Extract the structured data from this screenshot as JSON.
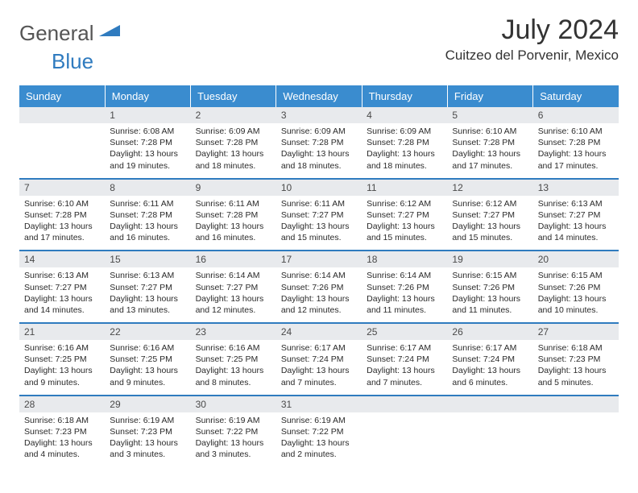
{
  "brand": {
    "part1": "General",
    "part2": "Blue"
  },
  "title": "July 2024",
  "location": "Cuitzeo del Porvenir, Mexico",
  "colors": {
    "header_bg": "#3a8ccf",
    "header_text": "#ffffff",
    "row_border": "#2f7bbf",
    "daynum_bg": "#e8eaed",
    "body_text": "#2a2a2a"
  },
  "typography": {
    "body_fontsize": 10.5,
    "title_fontsize": 34,
    "location_fontsize": 17,
    "header_fontsize": 13
  },
  "daynames": [
    "Sunday",
    "Monday",
    "Tuesday",
    "Wednesday",
    "Thursday",
    "Friday",
    "Saturday"
  ],
  "weeks": [
    [
      {
        "empty": true
      },
      {
        "num": "1",
        "sunrise": "Sunrise: 6:08 AM",
        "sunset": "Sunset: 7:28 PM",
        "day1": "Daylight: 13 hours",
        "day2": "and 19 minutes."
      },
      {
        "num": "2",
        "sunrise": "Sunrise: 6:09 AM",
        "sunset": "Sunset: 7:28 PM",
        "day1": "Daylight: 13 hours",
        "day2": "and 18 minutes."
      },
      {
        "num": "3",
        "sunrise": "Sunrise: 6:09 AM",
        "sunset": "Sunset: 7:28 PM",
        "day1": "Daylight: 13 hours",
        "day2": "and 18 minutes."
      },
      {
        "num": "4",
        "sunrise": "Sunrise: 6:09 AM",
        "sunset": "Sunset: 7:28 PM",
        "day1": "Daylight: 13 hours",
        "day2": "and 18 minutes."
      },
      {
        "num": "5",
        "sunrise": "Sunrise: 6:10 AM",
        "sunset": "Sunset: 7:28 PM",
        "day1": "Daylight: 13 hours",
        "day2": "and 17 minutes."
      },
      {
        "num": "6",
        "sunrise": "Sunrise: 6:10 AM",
        "sunset": "Sunset: 7:28 PM",
        "day1": "Daylight: 13 hours",
        "day2": "and 17 minutes."
      }
    ],
    [
      {
        "num": "7",
        "sunrise": "Sunrise: 6:10 AM",
        "sunset": "Sunset: 7:28 PM",
        "day1": "Daylight: 13 hours",
        "day2": "and 17 minutes."
      },
      {
        "num": "8",
        "sunrise": "Sunrise: 6:11 AM",
        "sunset": "Sunset: 7:28 PM",
        "day1": "Daylight: 13 hours",
        "day2": "and 16 minutes."
      },
      {
        "num": "9",
        "sunrise": "Sunrise: 6:11 AM",
        "sunset": "Sunset: 7:28 PM",
        "day1": "Daylight: 13 hours",
        "day2": "and 16 minutes."
      },
      {
        "num": "10",
        "sunrise": "Sunrise: 6:11 AM",
        "sunset": "Sunset: 7:27 PM",
        "day1": "Daylight: 13 hours",
        "day2": "and 15 minutes."
      },
      {
        "num": "11",
        "sunrise": "Sunrise: 6:12 AM",
        "sunset": "Sunset: 7:27 PM",
        "day1": "Daylight: 13 hours",
        "day2": "and 15 minutes."
      },
      {
        "num": "12",
        "sunrise": "Sunrise: 6:12 AM",
        "sunset": "Sunset: 7:27 PM",
        "day1": "Daylight: 13 hours",
        "day2": "and 15 minutes."
      },
      {
        "num": "13",
        "sunrise": "Sunrise: 6:13 AM",
        "sunset": "Sunset: 7:27 PM",
        "day1": "Daylight: 13 hours",
        "day2": "and 14 minutes."
      }
    ],
    [
      {
        "num": "14",
        "sunrise": "Sunrise: 6:13 AM",
        "sunset": "Sunset: 7:27 PM",
        "day1": "Daylight: 13 hours",
        "day2": "and 14 minutes."
      },
      {
        "num": "15",
        "sunrise": "Sunrise: 6:13 AM",
        "sunset": "Sunset: 7:27 PM",
        "day1": "Daylight: 13 hours",
        "day2": "and 13 minutes."
      },
      {
        "num": "16",
        "sunrise": "Sunrise: 6:14 AM",
        "sunset": "Sunset: 7:27 PM",
        "day1": "Daylight: 13 hours",
        "day2": "and 12 minutes."
      },
      {
        "num": "17",
        "sunrise": "Sunrise: 6:14 AM",
        "sunset": "Sunset: 7:26 PM",
        "day1": "Daylight: 13 hours",
        "day2": "and 12 minutes."
      },
      {
        "num": "18",
        "sunrise": "Sunrise: 6:14 AM",
        "sunset": "Sunset: 7:26 PM",
        "day1": "Daylight: 13 hours",
        "day2": "and 11 minutes."
      },
      {
        "num": "19",
        "sunrise": "Sunrise: 6:15 AM",
        "sunset": "Sunset: 7:26 PM",
        "day1": "Daylight: 13 hours",
        "day2": "and 11 minutes."
      },
      {
        "num": "20",
        "sunrise": "Sunrise: 6:15 AM",
        "sunset": "Sunset: 7:26 PM",
        "day1": "Daylight: 13 hours",
        "day2": "and 10 minutes."
      }
    ],
    [
      {
        "num": "21",
        "sunrise": "Sunrise: 6:16 AM",
        "sunset": "Sunset: 7:25 PM",
        "day1": "Daylight: 13 hours",
        "day2": "and 9 minutes."
      },
      {
        "num": "22",
        "sunrise": "Sunrise: 6:16 AM",
        "sunset": "Sunset: 7:25 PM",
        "day1": "Daylight: 13 hours",
        "day2": "and 9 minutes."
      },
      {
        "num": "23",
        "sunrise": "Sunrise: 6:16 AM",
        "sunset": "Sunset: 7:25 PM",
        "day1": "Daylight: 13 hours",
        "day2": "and 8 minutes."
      },
      {
        "num": "24",
        "sunrise": "Sunrise: 6:17 AM",
        "sunset": "Sunset: 7:24 PM",
        "day1": "Daylight: 13 hours",
        "day2": "and 7 minutes."
      },
      {
        "num": "25",
        "sunrise": "Sunrise: 6:17 AM",
        "sunset": "Sunset: 7:24 PM",
        "day1": "Daylight: 13 hours",
        "day2": "and 7 minutes."
      },
      {
        "num": "26",
        "sunrise": "Sunrise: 6:17 AM",
        "sunset": "Sunset: 7:24 PM",
        "day1": "Daylight: 13 hours",
        "day2": "and 6 minutes."
      },
      {
        "num": "27",
        "sunrise": "Sunrise: 6:18 AM",
        "sunset": "Sunset: 7:23 PM",
        "day1": "Daylight: 13 hours",
        "day2": "and 5 minutes."
      }
    ],
    [
      {
        "num": "28",
        "sunrise": "Sunrise: 6:18 AM",
        "sunset": "Sunset: 7:23 PM",
        "day1": "Daylight: 13 hours",
        "day2": "and 4 minutes."
      },
      {
        "num": "29",
        "sunrise": "Sunrise: 6:19 AM",
        "sunset": "Sunset: 7:23 PM",
        "day1": "Daylight: 13 hours",
        "day2": "and 3 minutes."
      },
      {
        "num": "30",
        "sunrise": "Sunrise: 6:19 AM",
        "sunset": "Sunset: 7:22 PM",
        "day1": "Daylight: 13 hours",
        "day2": "and 3 minutes."
      },
      {
        "num": "31",
        "sunrise": "Sunrise: 6:19 AM",
        "sunset": "Sunset: 7:22 PM",
        "day1": "Daylight: 13 hours",
        "day2": "and 2 minutes."
      },
      {
        "empty": true
      },
      {
        "empty": true
      },
      {
        "empty": true
      }
    ]
  ]
}
